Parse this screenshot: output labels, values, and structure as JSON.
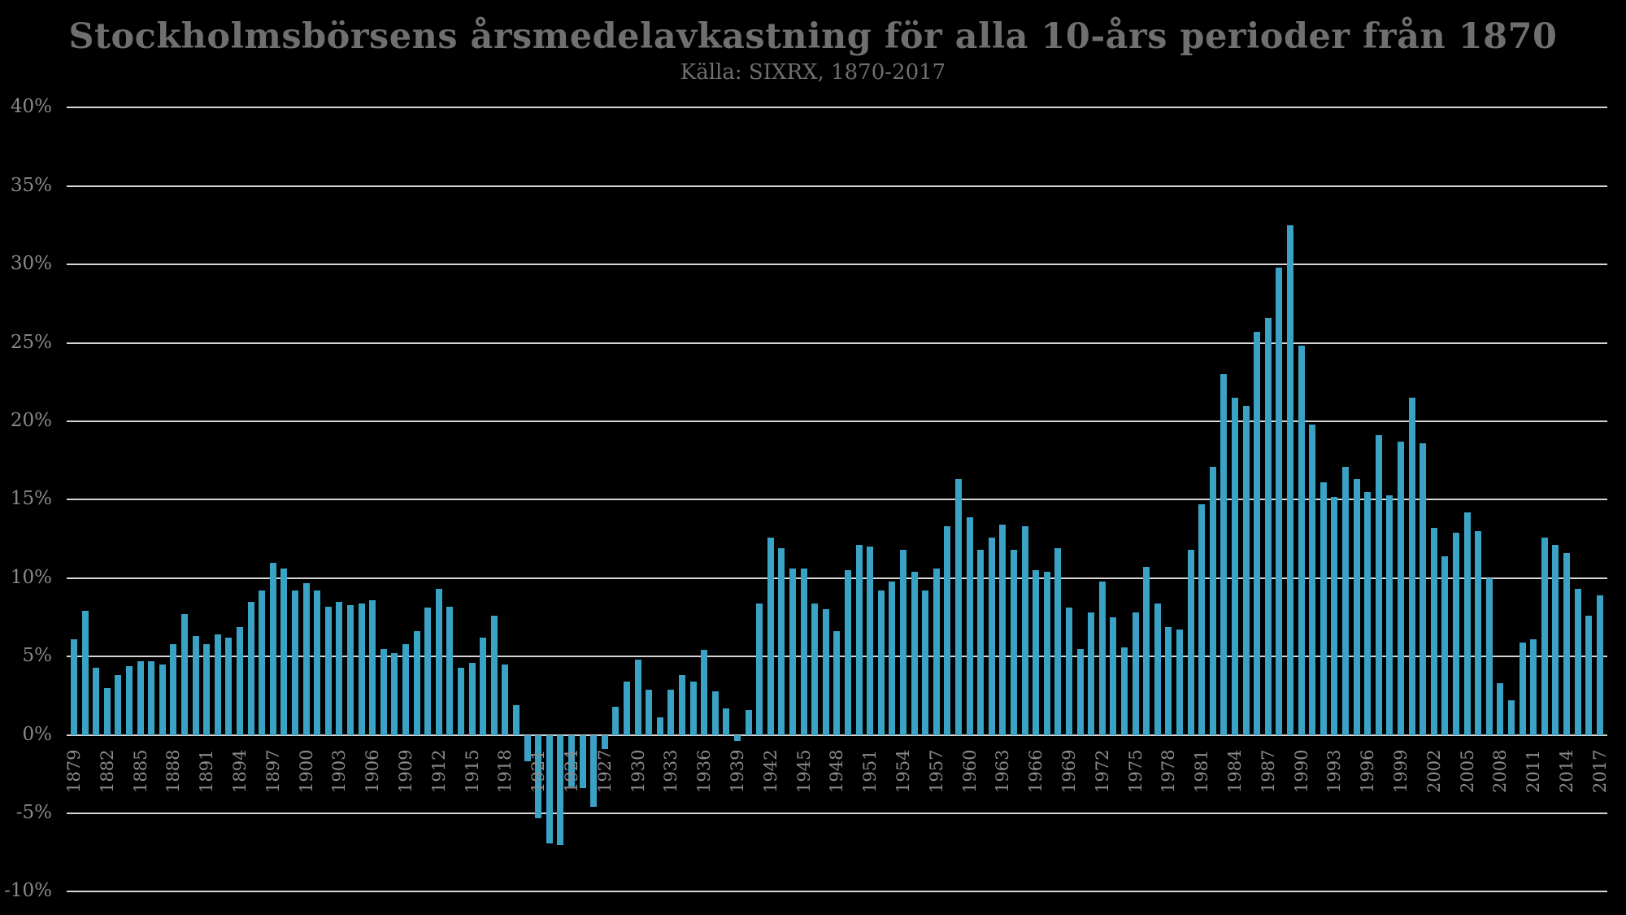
{
  "header": {
    "title": "Stockholmsbörsens årsmedelavkastning för alla 10-års perioder från 1870",
    "subtitle": "Källa: SIXRX, 1870-2017"
  },
  "colors": {
    "background": "#000000",
    "bar": "#3aa2c4",
    "gridline": "#d6d6d6",
    "title_text": "#6f6f6f",
    "axis_text": "#8a8a8a"
  },
  "chart_data": {
    "type": "bar",
    "title": "Stockholmsbörsens årsmedelavkastning för alla 10-års perioder från 1870",
    "subtitle": "Källa: SIXRX, 1870-2017",
    "xlabel": "",
    "ylabel": "",
    "unit": "%",
    "grid": true,
    "legend": false,
    "ylim": [
      -10,
      40
    ],
    "y_tick_values": [
      40,
      35,
      30,
      25,
      20,
      15,
      10,
      5,
      0,
      -5,
      -10
    ],
    "y_tick_labels": [
      "40%",
      "35%",
      "30%",
      "25%",
      "20%",
      "15%",
      "10%",
      "5%",
      "0%",
      "-5%",
      "-10%"
    ],
    "x_tick_step": 3,
    "x_tick_labels": [
      "1879",
      "1882",
      "1885",
      "1888",
      "1891",
      "1894",
      "1897",
      "1900",
      "1903",
      "1906",
      "1909",
      "1912",
      "1915",
      "1918",
      "1921",
      "1924",
      "1927",
      "1930",
      "1933",
      "1936",
      "1939",
      "1942",
      "1945",
      "1948",
      "1951",
      "1954",
      "1957",
      "1960",
      "1963",
      "1966",
      "1969",
      "1972",
      "1975",
      "1978",
      "1981",
      "1984",
      "1987",
      "1990",
      "1993",
      "1996",
      "1999",
      "2002",
      "2005",
      "2008",
      "2011",
      "2014",
      "2017"
    ],
    "x": [
      1879,
      1880,
      1881,
      1882,
      1883,
      1884,
      1885,
      1886,
      1887,
      1888,
      1889,
      1890,
      1891,
      1892,
      1893,
      1894,
      1895,
      1896,
      1897,
      1898,
      1899,
      1900,
      1901,
      1902,
      1903,
      1904,
      1905,
      1906,
      1907,
      1908,
      1909,
      1910,
      1911,
      1912,
      1913,
      1914,
      1915,
      1916,
      1917,
      1918,
      1919,
      1920,
      1921,
      1922,
      1923,
      1924,
      1925,
      1926,
      1927,
      1928,
      1929,
      1930,
      1931,
      1932,
      1933,
      1934,
      1935,
      1936,
      1937,
      1938,
      1939,
      1940,
      1941,
      1942,
      1943,
      1944,
      1945,
      1946,
      1947,
      1948,
      1949,
      1950,
      1951,
      1952,
      1953,
      1954,
      1955,
      1956,
      1957,
      1958,
      1959,
      1960,
      1961,
      1962,
      1963,
      1964,
      1965,
      1966,
      1967,
      1968,
      1969,
      1970,
      1971,
      1972,
      1973,
      1974,
      1975,
      1976,
      1977,
      1978,
      1979,
      1980,
      1981,
      1982,
      1983,
      1984,
      1985,
      1986,
      1987,
      1988,
      1989,
      1990,
      1991,
      1992,
      1993,
      1994,
      1995,
      1996,
      1997,
      1998,
      1999,
      2000,
      2001,
      2002,
      2003,
      2004,
      2005,
      2006,
      2007,
      2008,
      2009,
      2010,
      2011,
      2012,
      2013,
      2014,
      2015,
      2016,
      2017
    ],
    "values": [
      6.1,
      7.9,
      4.3,
      3.0,
      3.8,
      4.4,
      4.7,
      4.7,
      4.5,
      5.8,
      7.7,
      6.3,
      5.8,
      6.4,
      6.2,
      6.9,
      8.5,
      9.2,
      11.0,
      10.6,
      9.2,
      9.7,
      9.2,
      8.2,
      8.5,
      8.3,
      8.4,
      8.6,
      5.5,
      5.2,
      5.8,
      6.6,
      8.1,
      9.3,
      8.2,
      4.3,
      4.6,
      6.2,
      7.6,
      4.5,
      1.9,
      -1.7,
      -5.3,
      -6.9,
      -7.0,
      -3.3,
      -3.4,
      -4.6,
      -0.9,
      1.8,
      3.4,
      4.8,
      2.9,
      1.1,
      2.9,
      3.8,
      3.4,
      5.4,
      2.8,
      1.7,
      -0.4,
      1.6,
      8.4,
      12.6,
      11.9,
      10.6,
      10.6,
      8.4,
      8.0,
      6.6,
      10.5,
      12.1,
      12.0,
      9.2,
      9.8,
      11.8,
      10.4,
      9.2,
      10.6,
      13.3,
      16.3,
      13.9,
      11.8,
      12.6,
      13.4,
      11.8,
      13.3,
      10.5,
      10.4,
      11.9,
      8.1,
      5.5,
      7.8,
      9.8,
      7.5,
      5.6,
      7.8,
      10.7,
      8.4,
      6.9,
      6.7,
      11.8,
      14.7,
      17.1,
      23.0,
      21.5,
      21.0,
      25.7,
      26.6,
      29.8,
      32.5,
      24.8,
      19.8,
      16.1,
      15.2,
      17.1,
      16.3,
      15.5,
      19.1,
      15.3,
      18.7,
      21.5,
      18.6,
      13.2,
      11.4,
      12.9,
      14.2,
      13.0,
      10.0,
      3.3,
      2.2,
      5.9,
      6.1,
      12.6,
      12.1,
      11.6,
      9.3,
      7.6,
      8.9
    ]
  }
}
